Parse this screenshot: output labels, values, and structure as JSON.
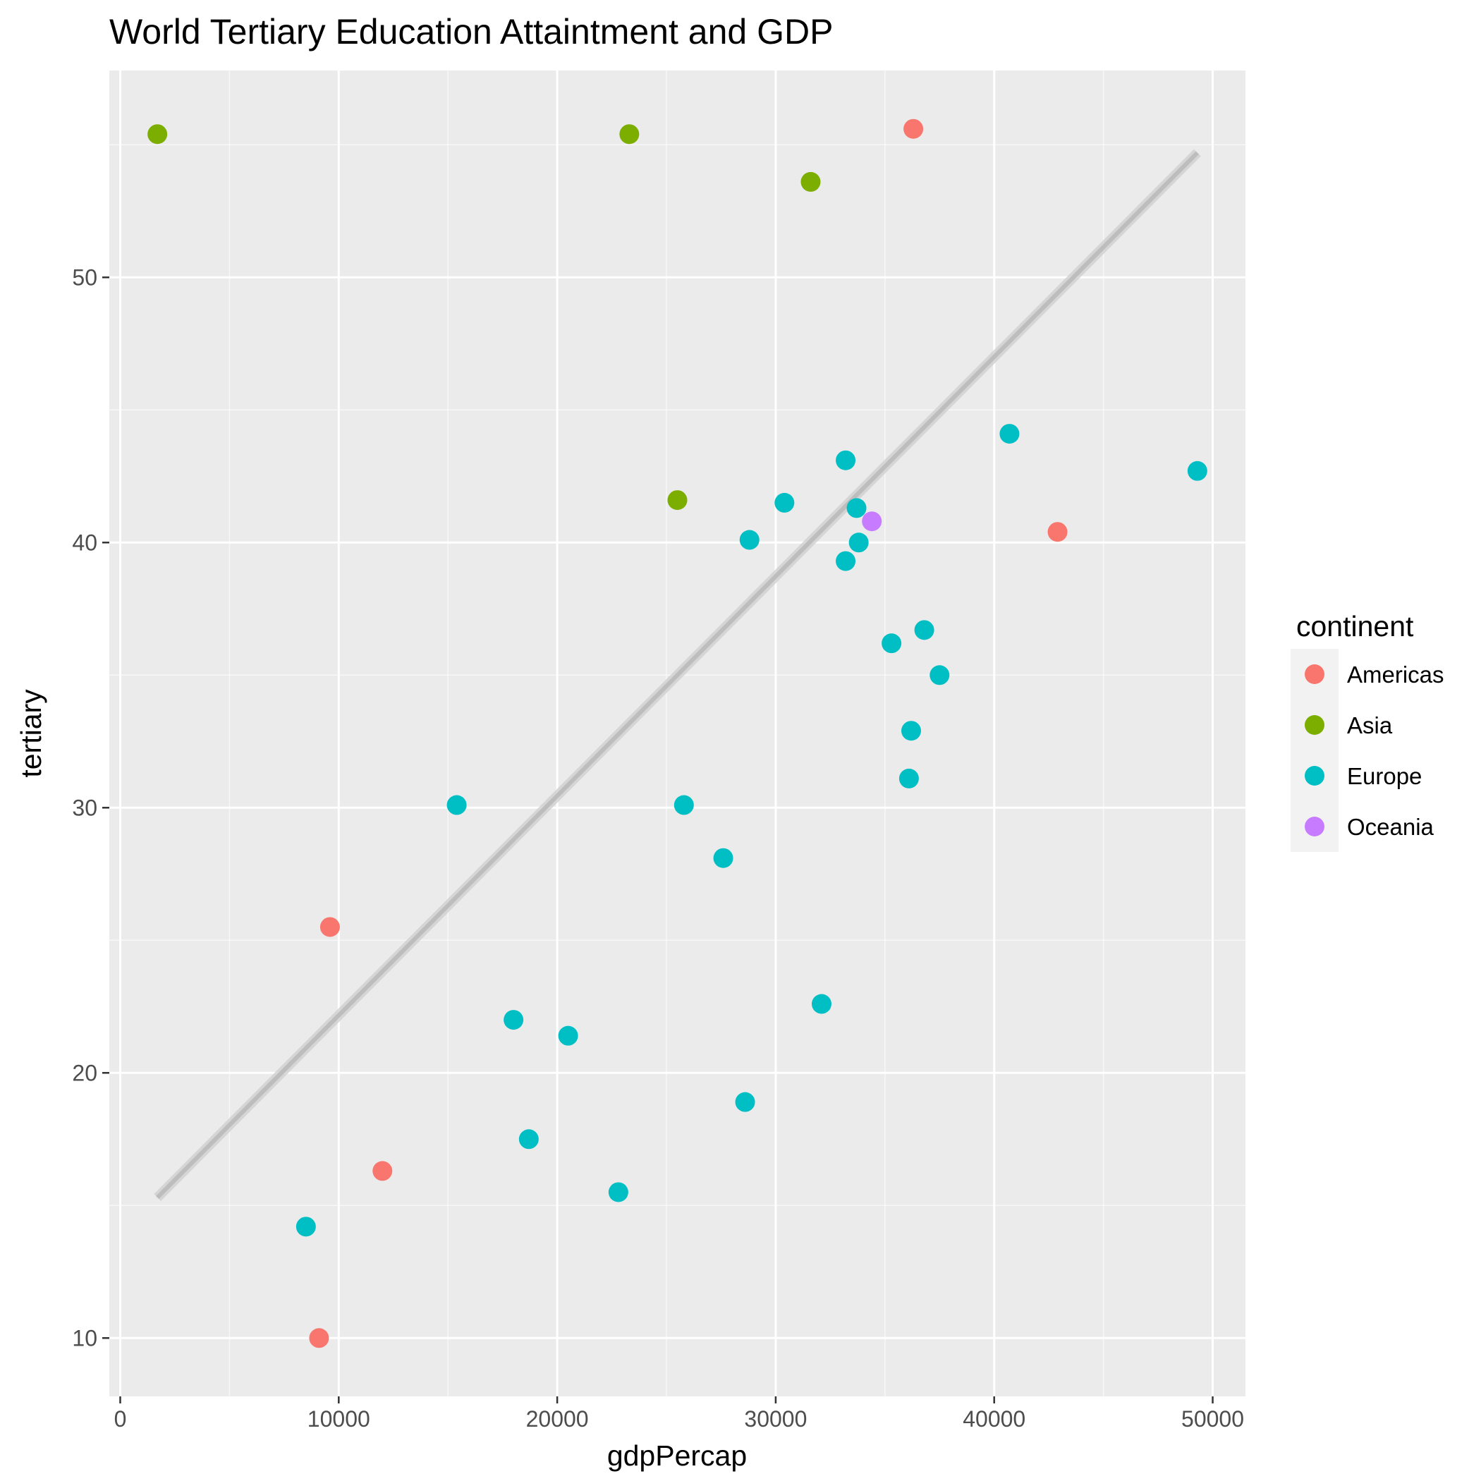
{
  "chart_data": {
    "type": "scatter",
    "title": "World Tertiary Education Attaintment and GDP",
    "xlabel": "gdpPercap",
    "ylabel": "tertiary",
    "xlim": [
      -500,
      51500
    ],
    "ylim": [
      7.8,
      57.8
    ],
    "x_ticks": [
      0,
      10000,
      20000,
      30000,
      40000,
      50000
    ],
    "x_tick_labels": [
      "0",
      "10000",
      "20000",
      "30000",
      "40000",
      "50000"
    ],
    "x_minor": [
      5000,
      15000,
      25000,
      35000,
      45000
    ],
    "y_ticks": [
      10,
      20,
      30,
      40,
      50
    ],
    "y_tick_labels": [
      "10",
      "20",
      "30",
      "40",
      "50"
    ],
    "y_minor": [
      15,
      25,
      35,
      45,
      55
    ],
    "grid": true,
    "background": "#ebebeb",
    "legend": {
      "title": "continent",
      "position": "right",
      "entries": [
        {
          "label": "Americas",
          "color": "#f8766d"
        },
        {
          "label": "Asia",
          "color": "#7cae00"
        },
        {
          "label": "Europe",
          "color": "#00bfc4"
        },
        {
          "label": "Oceania",
          "color": "#c77cff"
        }
      ]
    },
    "series": [
      {
        "name": "Americas",
        "color": "#f8766d",
        "points": [
          {
            "x": 36300,
            "y": 55.6
          },
          {
            "x": 42900,
            "y": 40.4
          },
          {
            "x": 9600,
            "y": 25.5
          },
          {
            "x": 12000,
            "y": 16.3
          },
          {
            "x": 9100,
            "y": 10.0
          }
        ]
      },
      {
        "name": "Asia",
        "color": "#7cae00",
        "points": [
          {
            "x": 1700,
            "y": 55.4
          },
          {
            "x": 23300,
            "y": 55.4
          },
          {
            "x": 31600,
            "y": 53.6
          },
          {
            "x": 25500,
            "y": 41.6
          }
        ]
      },
      {
        "name": "Europe",
        "color": "#00bfc4",
        "points": [
          {
            "x": 40700,
            "y": 44.1
          },
          {
            "x": 49300,
            "y": 42.7
          },
          {
            "x": 33200,
            "y": 43.1
          },
          {
            "x": 30400,
            "y": 41.5
          },
          {
            "x": 33700,
            "y": 41.3
          },
          {
            "x": 28800,
            "y": 40.1
          },
          {
            "x": 33800,
            "y": 40.0
          },
          {
            "x": 33200,
            "y": 39.3
          },
          {
            "x": 36800,
            "y": 36.7
          },
          {
            "x": 35300,
            "y": 36.2
          },
          {
            "x": 37500,
            "y": 35.0
          },
          {
            "x": 36200,
            "y": 32.9
          },
          {
            "x": 36100,
            "y": 31.1
          },
          {
            "x": 15400,
            "y": 30.1
          },
          {
            "x": 25800,
            "y": 30.1
          },
          {
            "x": 27600,
            "y": 28.1
          },
          {
            "x": 32100,
            "y": 22.6
          },
          {
            "x": 18000,
            "y": 22.0
          },
          {
            "x": 20500,
            "y": 21.4
          },
          {
            "x": 28600,
            "y": 18.9
          },
          {
            "x": 18700,
            "y": 17.5
          },
          {
            "x": 22800,
            "y": 15.5
          },
          {
            "x": 8500,
            "y": 14.2
          }
        ]
      },
      {
        "name": "Oceania",
        "color": "#c77cff",
        "points": [
          {
            "x": 34400,
            "y": 40.8
          }
        ]
      }
    ],
    "trendline": {
      "x": [
        1700,
        49300
      ],
      "y": [
        15.3,
        54.7
      ],
      "color": "#bdbdbd"
    }
  }
}
